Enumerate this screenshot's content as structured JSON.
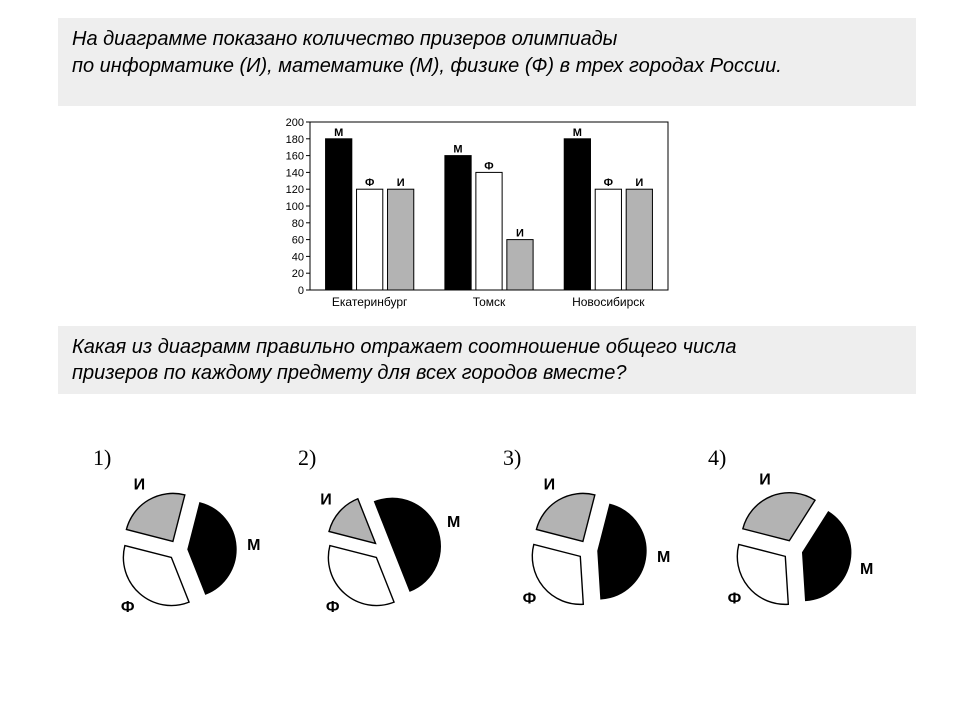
{
  "header_top": "На диаграмме показано количество призеров олимпиады\nпо информатике (И), математике (М), физике (Ф) в трех городах России.",
  "header_bottom": "Какая из диаграмм правильно отражает соотношение общего числа\nпризеров по каждому предмету для всех городов вместе?",
  "bar_chart": {
    "type": "bar",
    "ylim": [
      0,
      200
    ],
    "ytick_step": 20,
    "categories": [
      "Екатеринбург",
      "Томск",
      "Новосибирск"
    ],
    "series_letters": [
      "М",
      "Ф",
      "И"
    ],
    "series_colors": [
      "#000000",
      "#ffffff",
      "#b3b3b3"
    ],
    "values": {
      "Екатеринбург": {
        "М": 180,
        "Ф": 120,
        "И": 120
      },
      "Томск": {
        "М": 160,
        "Ф": 140,
        "И": 60
      },
      "Новосибирск": {
        "М": 180,
        "Ф": 120,
        "И": 120
      }
    },
    "bar_width": 0.22,
    "axis_color": "#000000",
    "font_size_labels": 11,
    "font_size_cats": 12
  },
  "pies": [
    {
      "num": "1)",
      "slices": [
        {
          "l": "И",
          "c": "#b3b3b3",
          "f": 0.25
        },
        {
          "l": "М",
          "c": "#000000",
          "f": 0.4
        },
        {
          "l": "Ф",
          "c": "#ffffff",
          "f": 0.35
        }
      ]
    },
    {
      "num": "2)",
      "slices": [
        {
          "l": "И",
          "c": "#b3b3b3",
          "f": 0.15
        },
        {
          "l": "М",
          "c": "#000000",
          "f": 0.5
        },
        {
          "l": "Ф",
          "c": "#ffffff",
          "f": 0.35
        }
      ]
    },
    {
      "num": "3)",
      "slices": [
        {
          "l": "И",
          "c": "#b3b3b3",
          "f": 0.25
        },
        {
          "l": "М",
          "c": "#000000",
          "f": 0.45
        },
        {
          "l": "Ф",
          "c": "#ffffff",
          "f": 0.3
        }
      ]
    },
    {
      "num": "4)",
      "slices": [
        {
          "l": "И",
          "c": "#b3b3b3",
          "f": 0.3
        },
        {
          "l": "М",
          "c": "#000000",
          "f": 0.4
        },
        {
          "l": "Ф",
          "c": "#ffffff",
          "f": 0.3
        }
      ]
    }
  ],
  "pie_style": {
    "radius": 48,
    "explode": 10,
    "stroke": "#000000",
    "label_font": "bold 16px Arial",
    "num_font": "22px 'Times New Roman',serif"
  }
}
